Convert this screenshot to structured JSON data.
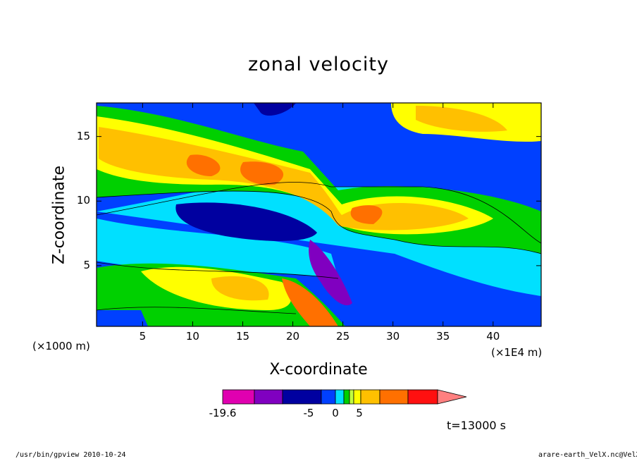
{
  "chart_data": {
    "type": "heatmap",
    "title": "zonal velocity",
    "xlabel": "X-coordinate",
    "ylabel": "Z-coordinate",
    "x_unit": "(×1000 m)",
    "x_scale": "(×1E4 m)",
    "x_ticks": [
      5,
      10,
      15,
      20,
      25,
      30,
      35,
      40
    ],
    "y_ticks": [
      5,
      10,
      15
    ],
    "xlim": [
      0.4,
      44.8
    ],
    "ylim": [
      0.3,
      17.6
    ],
    "colorbar": {
      "colors": [
        "#e000b0",
        "#8000c0",
        "#0000a0",
        "#0040ff",
        "#00e0ff",
        "#00d000",
        "#c0ff40",
        "#ffff00",
        "#ffc000",
        "#ff7000",
        "#ff1010",
        "#ff8080"
      ],
      "tick_labels": [
        "-19.6",
        "-5",
        "0",
        "5"
      ]
    },
    "time": "t=13000 s"
  },
  "footer": {
    "left": "/usr/bin/gpview  2010-10-24",
    "right": "arare-earth_VelX.nc@VelX"
  }
}
